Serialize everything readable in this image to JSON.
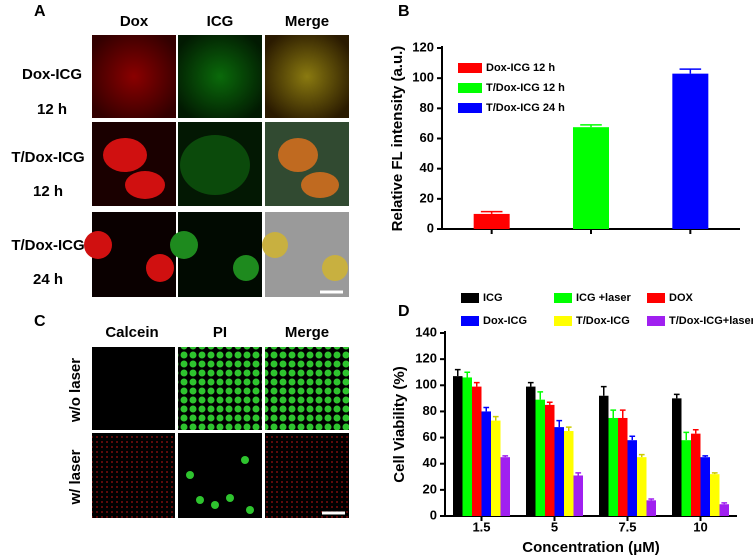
{
  "panels": {
    "A": {
      "label": "A",
      "columns": [
        "Dox",
        "ICG",
        "Merge"
      ],
      "rows": [
        [
          "Dox-ICG",
          "12 h"
        ],
        [
          "T/Dox-ICG",
          "12 h"
        ],
        [
          "T/Dox-ICG",
          "24 h"
        ]
      ]
    },
    "C": {
      "label": "C",
      "columns": [
        "Calcein",
        "PI",
        "Merge"
      ],
      "rows": [
        "w/o laser",
        "w/ laser"
      ]
    }
  },
  "chart_data": [
    {
      "type": "bar",
      "label": "B",
      "y_label": "Relative FL intensity (a.u.)",
      "categories": [
        null,
        null,
        null
      ],
      "series": [
        {
          "name": "Dox-ICG   12 h",
          "color": "#ff0000",
          "values": [
            10,
            null,
            null
          ],
          "errors": [
            1.5,
            null,
            null
          ]
        },
        {
          "name": "T/Dox-ICG 12 h",
          "color": "#00ff00",
          "values": [
            null,
            67.5,
            null
          ],
          "errors": [
            null,
            1.5,
            null
          ]
        },
        {
          "name": "T/Dox-ICG 24 h",
          "color": "#0000ff",
          "values": [
            null,
            null,
            103
          ],
          "errors": [
            null,
            null,
            3
          ]
        }
      ],
      "ylim": [
        0,
        120
      ],
      "yticks": [
        0,
        20,
        40,
        60,
        80,
        100,
        120
      ],
      "legend": "upper-left"
    },
    {
      "type": "bar",
      "label": "D",
      "y_label": "Cell Viability (%)",
      "x_label": "Concentration (μM)",
      "categories": [
        "1.5",
        "5",
        "7.5",
        "10"
      ],
      "series": [
        {
          "name": "ICG",
          "color": "#000000",
          "values": [
            107,
            99,
            92,
            90
          ],
          "errors": [
            5,
            3,
            7,
            3
          ]
        },
        {
          "name": "ICG +laser",
          "color": "#00ff00",
          "values": [
            106,
            89,
            75,
            58
          ],
          "errors": [
            4,
            6,
            6,
            6
          ]
        },
        {
          "name": "DOX",
          "color": "#ff0000",
          "values": [
            99,
            85,
            75,
            63
          ],
          "errors": [
            3,
            2,
            6,
            3
          ]
        },
        {
          "name": "Dox-ICG",
          "color": "#0000ff",
          "values": [
            80,
            68,
            58,
            45
          ],
          "errors": [
            3,
            5,
            3,
            1
          ]
        },
        {
          "name": "T/Dox-ICG",
          "color": "#ffff00",
          "values": [
            73,
            65,
            45,
            32
          ],
          "errors": [
            3,
            3,
            2,
            1
          ]
        },
        {
          "name": "T/Dox-ICG+laser",
          "color": "#a020f0",
          "values": [
            45,
            31,
            12,
            9
          ],
          "errors": [
            1,
            2,
            1,
            1
          ]
        }
      ],
      "ylim": [
        0,
        140
      ],
      "yticks": [
        0,
        20,
        40,
        60,
        80,
        100,
        120,
        140
      ],
      "legend": "top"
    }
  ]
}
